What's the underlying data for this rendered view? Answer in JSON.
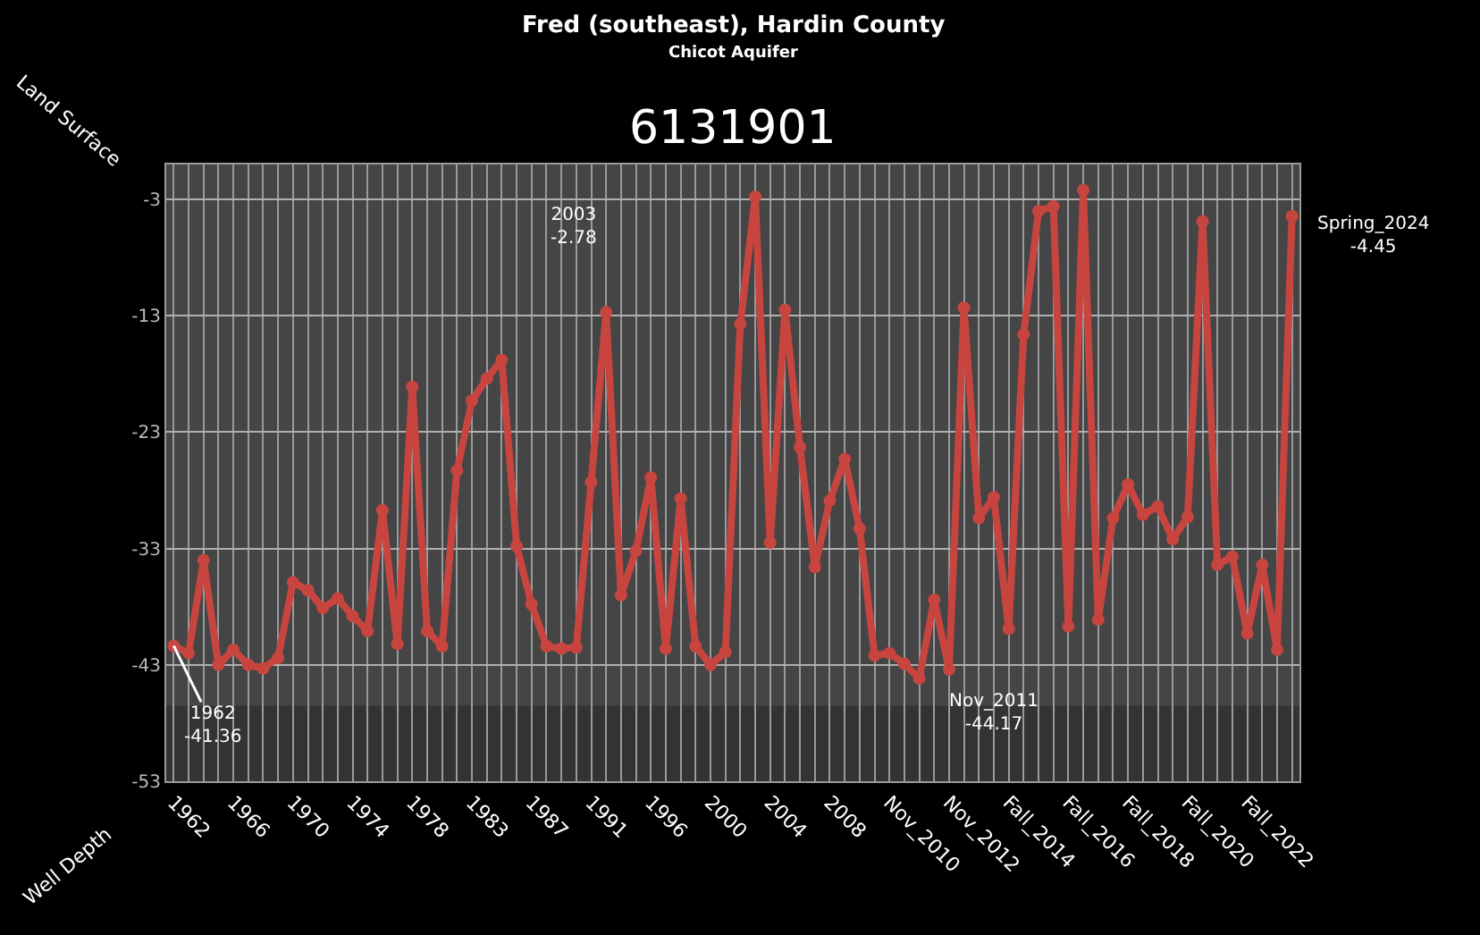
{
  "chart_data": {
    "type": "line",
    "title": "Fred (southeast), Hardin County",
    "subtitle": "Chicot Aquifer",
    "categories": [
      "1962",
      null,
      null,
      null,
      "1966",
      null,
      null,
      null,
      "1970",
      null,
      null,
      null,
      "1974",
      null,
      null,
      null,
      "1978",
      null,
      null,
      null,
      "1983",
      null,
      null,
      null,
      "1987",
      null,
      null,
      null,
      "1991",
      null,
      null,
      null,
      "1996",
      null,
      null,
      null,
      "2000",
      null,
      null,
      null,
      "2004",
      null,
      null,
      null,
      "2008",
      null,
      null,
      null,
      "Nov_2010",
      null,
      null,
      null,
      "Nov_2012",
      null,
      null,
      null,
      "Fall_2014",
      null,
      null,
      null,
      "Fall_2016",
      null,
      null,
      null,
      "Fall_2018",
      null,
      null,
      null,
      "Fall_2020",
      null,
      null,
      null,
      "Fall_2022",
      null,
      null,
      null
    ],
    "series": [
      {
        "color": "#c8453f",
        "values": [
          -41.36,
          -42.0,
          -34.0,
          -43.0,
          -41.7,
          -43.0,
          -43.3,
          -42.4,
          -35.9,
          -36.6,
          -38.1,
          -37.3,
          -38.8,
          -40.1,
          -29.7,
          -41.2,
          -19.1,
          -40.1,
          -41.4,
          -26.3,
          -20.3,
          -18.4,
          -16.8,
          -32.8,
          -37.8,
          -41.4,
          -41.6,
          -41.5,
          -27.3,
          -12.7,
          -37.0,
          -33.2,
          -26.9,
          -41.6,
          -28.7,
          -41.4,
          -43.0,
          -41.9,
          -13.7,
          -2.78,
          -32.5,
          -12.5,
          -24.3,
          -34.6,
          -28.9,
          -25.3,
          -31.3,
          -42.2,
          -42.0,
          -42.9,
          -44.17,
          -37.4,
          -43.4,
          -12.3,
          -30.4,
          -28.6,
          -39.9,
          -14.6,
          -4.0,
          -3.6,
          -39.7,
          -2.2,
          -39.1,
          -30.4,
          -27.5,
          -30.1,
          -29.4,
          -32.2,
          -30.3,
          -4.9,
          -34.4,
          -33.7,
          -40.3,
          -34.4,
          -41.7,
          -4.45
        ]
      }
    ],
    "ylim": [
      -53,
      0
    ],
    "yticks": [
      -53,
      -43,
      -33,
      -23,
      -13,
      -3
    ],
    "grid": true,
    "marker": "circle",
    "line_style": "solid",
    "bands": [
      {
        "axis": "y",
        "from": -53,
        "to": -46.5,
        "color": "#333333"
      }
    ],
    "annotations": [
      "6131901",
      "Land Surface",
      "Well Depth",
      {
        "text": "1962\n-41.36",
        "x": "1962",
        "y": -41.36
      },
      "2003\n-2.78",
      "Nov_2011\n-44.17",
      "Spring_2024\n-4.45"
    ]
  }
}
